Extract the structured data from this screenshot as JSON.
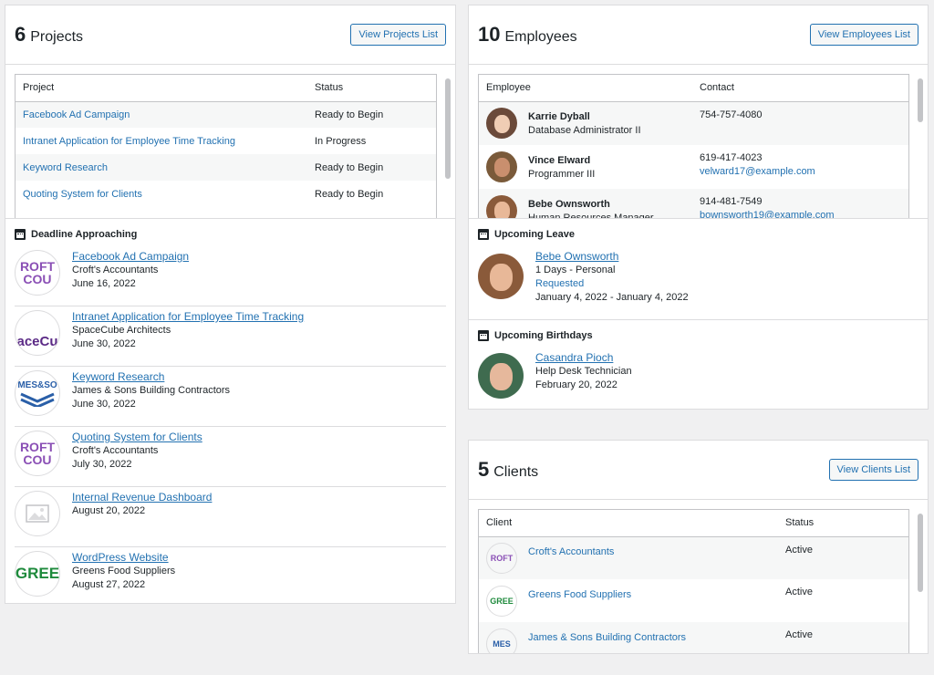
{
  "projects": {
    "count": "6",
    "title": "Projects",
    "button": "View Projects List",
    "col_project": "Project",
    "col_status": "Status",
    "rows": [
      {
        "name": "Facebook Ad Campaign",
        "status": "Ready to Begin"
      },
      {
        "name": "Intranet Application for Employee Time Tracking",
        "status": "In Progress"
      },
      {
        "name": "Keyword Research",
        "status": "Ready to Begin"
      },
      {
        "name": "Quoting System for Clients",
        "status": "Ready to Begin"
      }
    ]
  },
  "deadline": {
    "title": "Deadline Approaching",
    "items": [
      {
        "project": "Facebook Ad Campaign",
        "client": "Croft's Accountants",
        "date": "June 16, 2022",
        "logo_text": "ROFT\nCOU",
        "logo_color": "#8a4fb5"
      },
      {
        "project": "Intranet Application for Employee Time Tracking",
        "client": "SpaceCube Architects",
        "date": "June 30, 2022",
        "logo_text": "aceCu",
        "logo_color": "#5b2a86"
      },
      {
        "project": "Keyword Research",
        "client": "James & Sons Building Contractors",
        "date": "June 30, 2022",
        "logo_text": "MES&SO",
        "logo_color": "#2a5fa8"
      },
      {
        "project": "Quoting System for Clients",
        "client": "Croft's Accountants",
        "date": "July 30, 2022",
        "logo_text": "ROFT\nCOU",
        "logo_color": "#8a4fb5"
      },
      {
        "project": "Internal Revenue Dashboard",
        "client": "",
        "date": "August 20, 2022",
        "logo_text": "",
        "logo_color": "#c3c4c7"
      },
      {
        "project": "WordPress Website",
        "client": "Greens Food Suppliers",
        "date": "August 27, 2022",
        "logo_text": "GREE",
        "logo_color": "#1e8a3c"
      }
    ]
  },
  "employees": {
    "count": "10",
    "title": "Employees",
    "button": "View Employees List",
    "col_employee": "Employee",
    "col_contact": "Contact",
    "rows": [
      {
        "name": "Karrie Dyball",
        "role": "Database Administrator II",
        "phone": "754-757-4080",
        "email": ""
      },
      {
        "name": "Vince Elward",
        "role": "Programmer III",
        "phone": "619-417-4023",
        "email": "velward17@example.com"
      },
      {
        "name": "Bebe Ownsworth",
        "role": "Human Resources Manager",
        "phone": "914-481-7549",
        "email": "bownsworth19@example.com"
      }
    ]
  },
  "leave": {
    "title": "Upcoming Leave",
    "name": "Bebe Ownsworth",
    "type": "1 Days - Personal",
    "status": "Requested",
    "dates": "January 4, 2022 - January 4, 2022"
  },
  "birthdays": {
    "title": "Upcoming Birthdays",
    "name": "Casandra Pioch",
    "role": "Help Desk Technician",
    "date": "February 20, 2022"
  },
  "clients": {
    "count": "5",
    "title": "Clients",
    "button": "View Clients List",
    "col_client": "Client",
    "col_status": "Status",
    "rows": [
      {
        "name": "Croft's Accountants",
        "status": "Active",
        "logo_text": "ROFT",
        "logo_color": "#8a4fb5"
      },
      {
        "name": "Greens Food Suppliers",
        "status": "Active",
        "logo_text": "GREE",
        "logo_color": "#1e8a3c"
      },
      {
        "name": "James & Sons Building Contractors",
        "status": "Active",
        "logo_text": "MES",
        "logo_color": "#2a5fa8"
      }
    ]
  }
}
